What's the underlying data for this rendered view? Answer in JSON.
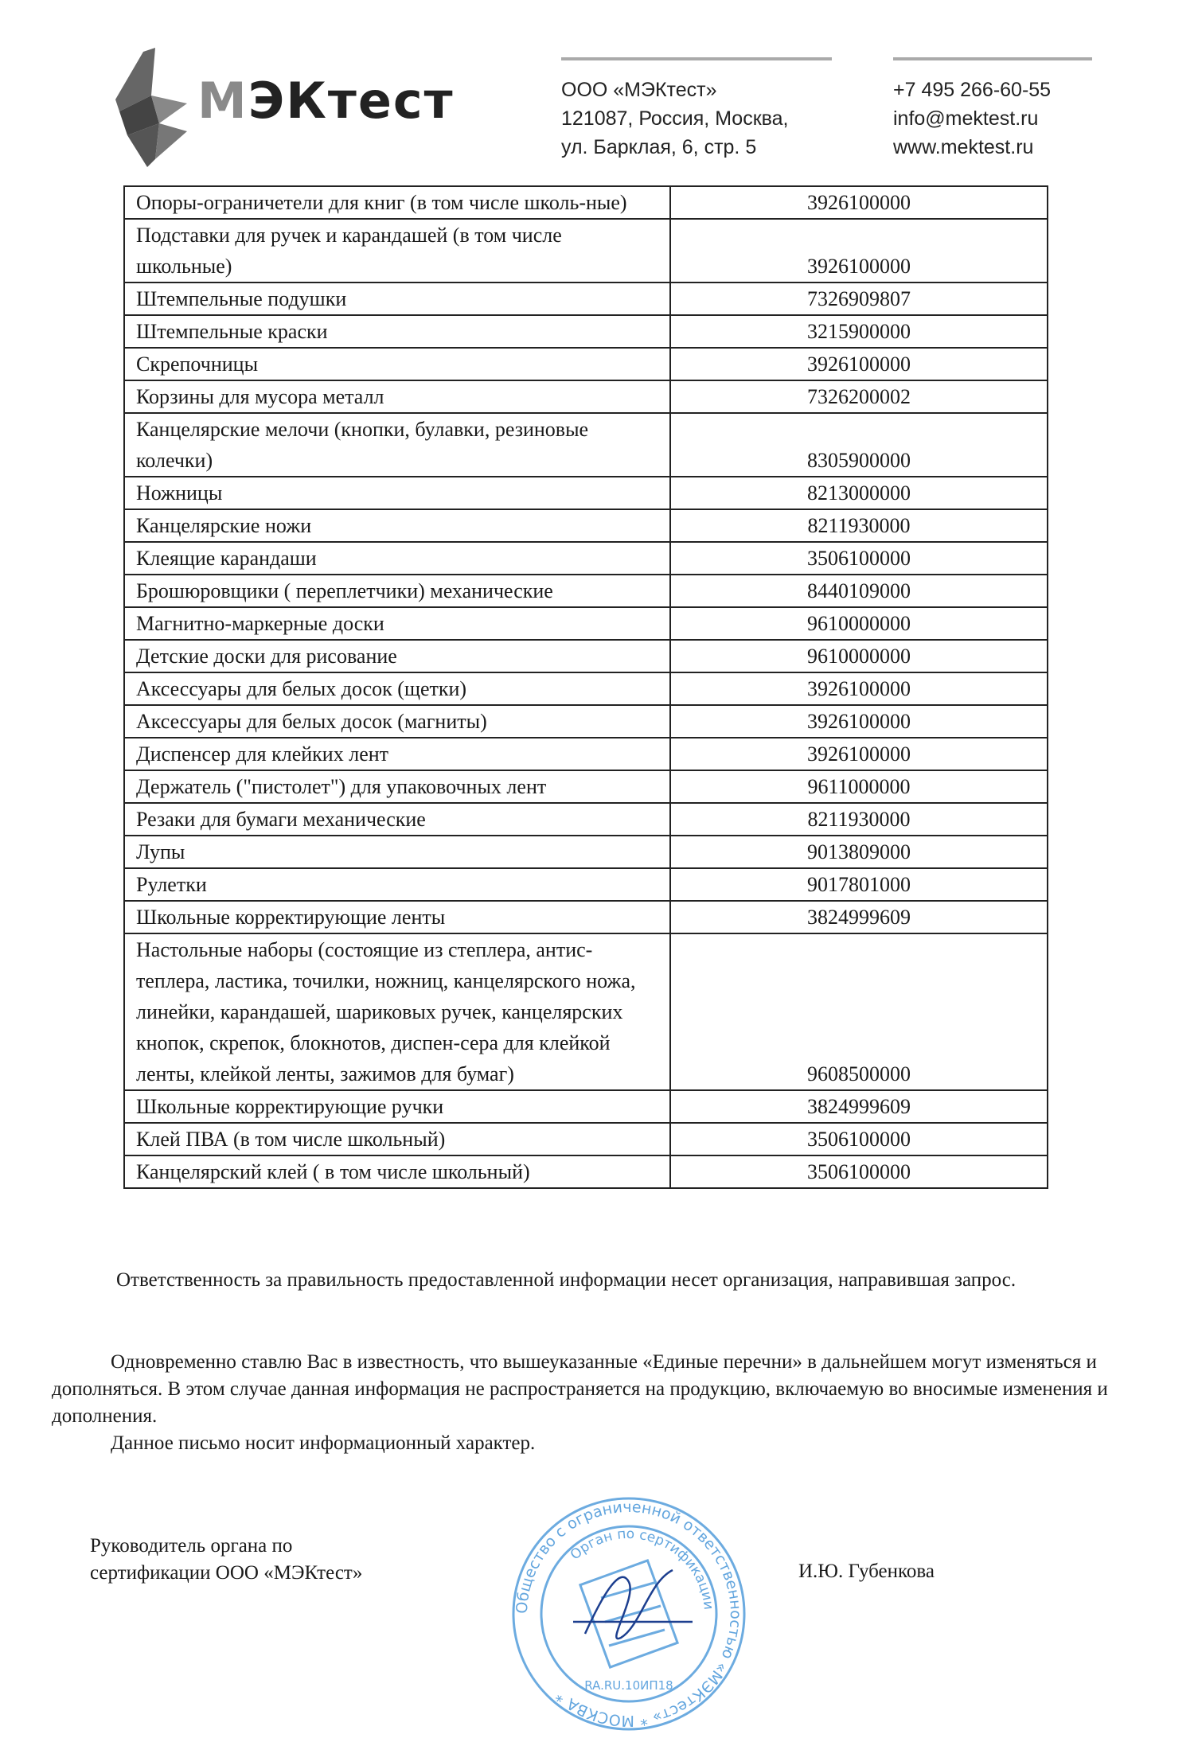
{
  "header": {
    "logo_text": "МЭКтест",
    "company": "ООО «МЭКтест»",
    "address_line1": "121087, Россия, Москва,",
    "address_line2": "ул. Барклая, 6, стр. 5",
    "phone": "+7 495 266-60-55",
    "email": "info@mektest.ru",
    "website": "www.mektest.ru"
  },
  "table": {
    "rows": [
      {
        "name": "Опоры-ограничетели для книг (в том числе школь-ные)",
        "code": "3926100000"
      },
      {
        "name": "Подставки для ручек и карандашей (в том числе школьные)",
        "code": "3926100000"
      },
      {
        "name": "Штемпельные подушки",
        "code": "7326909807"
      },
      {
        "name": "Штемпельные краски",
        "code": "3215900000"
      },
      {
        "name": "Скрепочницы",
        "code": "3926100000"
      },
      {
        "name": "Корзины для мусора металл",
        "code": "7326200002"
      },
      {
        "name": "Канцелярские мелочи (кнопки, булавки, резиновые колечки)",
        "code": "8305900000"
      },
      {
        "name": "Ножницы",
        "code": "8213000000"
      },
      {
        "name": "Канцелярские ножи",
        "code": "8211930000"
      },
      {
        "name": "Клеящие карандаши",
        "code": "3506100000"
      },
      {
        "name": "Брошюровщики ( переплетчики) механические",
        "code": "8440109000"
      },
      {
        "name": "Магнитно-маркерные доски",
        "code": "9610000000"
      },
      {
        "name": "Детские доски для рисование",
        "code": "9610000000"
      },
      {
        "name": "Аксессуары для белых досок (щетки)",
        "code": "3926100000"
      },
      {
        "name": "Аксессуары для белых досок (магниты)",
        "code": "3926100000"
      },
      {
        "name": "Диспенсер для клейких лент",
        "code": "3926100000"
      },
      {
        "name": "Держатель (\"пистолет\") для упаковочных лент",
        "code": "9611000000"
      },
      {
        "name": "Резаки для бумаги механические",
        "code": "8211930000"
      },
      {
        "name": "Лупы",
        "code": "9013809000"
      },
      {
        "name": "Рулетки",
        "code": "9017801000"
      },
      {
        "name": "Школьные корректирующие ленты",
        "code": "3824999609"
      },
      {
        "name": "Настольные наборы (состоящие из степлера, антис-теплера, ластика, точилки, ножниц, канцелярского ножа, линейки, карандашей, шариковых ручек, канцелярских кнопок, скрепок, блокнотов, диспен-сера для клейкой ленты, клейкой ленты, зажимов для бумаг)",
        "code": "9608500000"
      },
      {
        "name": "Школьные корректирующие ручки",
        "code": "3824999609"
      },
      {
        "name": "Клей ПВА (в том числе школьный)",
        "code": "3506100000"
      },
      {
        "name": "Канцелярский клей ( в том числе школьный)",
        "code": "3506100000"
      }
    ]
  },
  "body": {
    "para1": "Ответственность за правильность предоставленной информации несет организация, направившая запрос.",
    "para2": "Одновременно ставлю Вас в известность, что вышеуказанные «Единые перечни» в дальнейшем могут изменяться и дополняться. В этом случае данная информация не распространяется на продукцию, включаемую во вносимые изменения и дополнения.",
    "para3": "Данное письмо носит информационный характер."
  },
  "signature": {
    "position_line1": "Руководитель органа по",
    "position_line2": "сертификации  ООО «МЭКтест»",
    "name": "И.Ю. Губенкова"
  },
  "stamp": {
    "outer_text": "Общество с ограниченной ответственностью «МЭКтест» * МОСКВА *",
    "inner_text": "Орган по сертификации",
    "code": "RA.RU.10ИП18",
    "color": "#3b8fd6"
  }
}
